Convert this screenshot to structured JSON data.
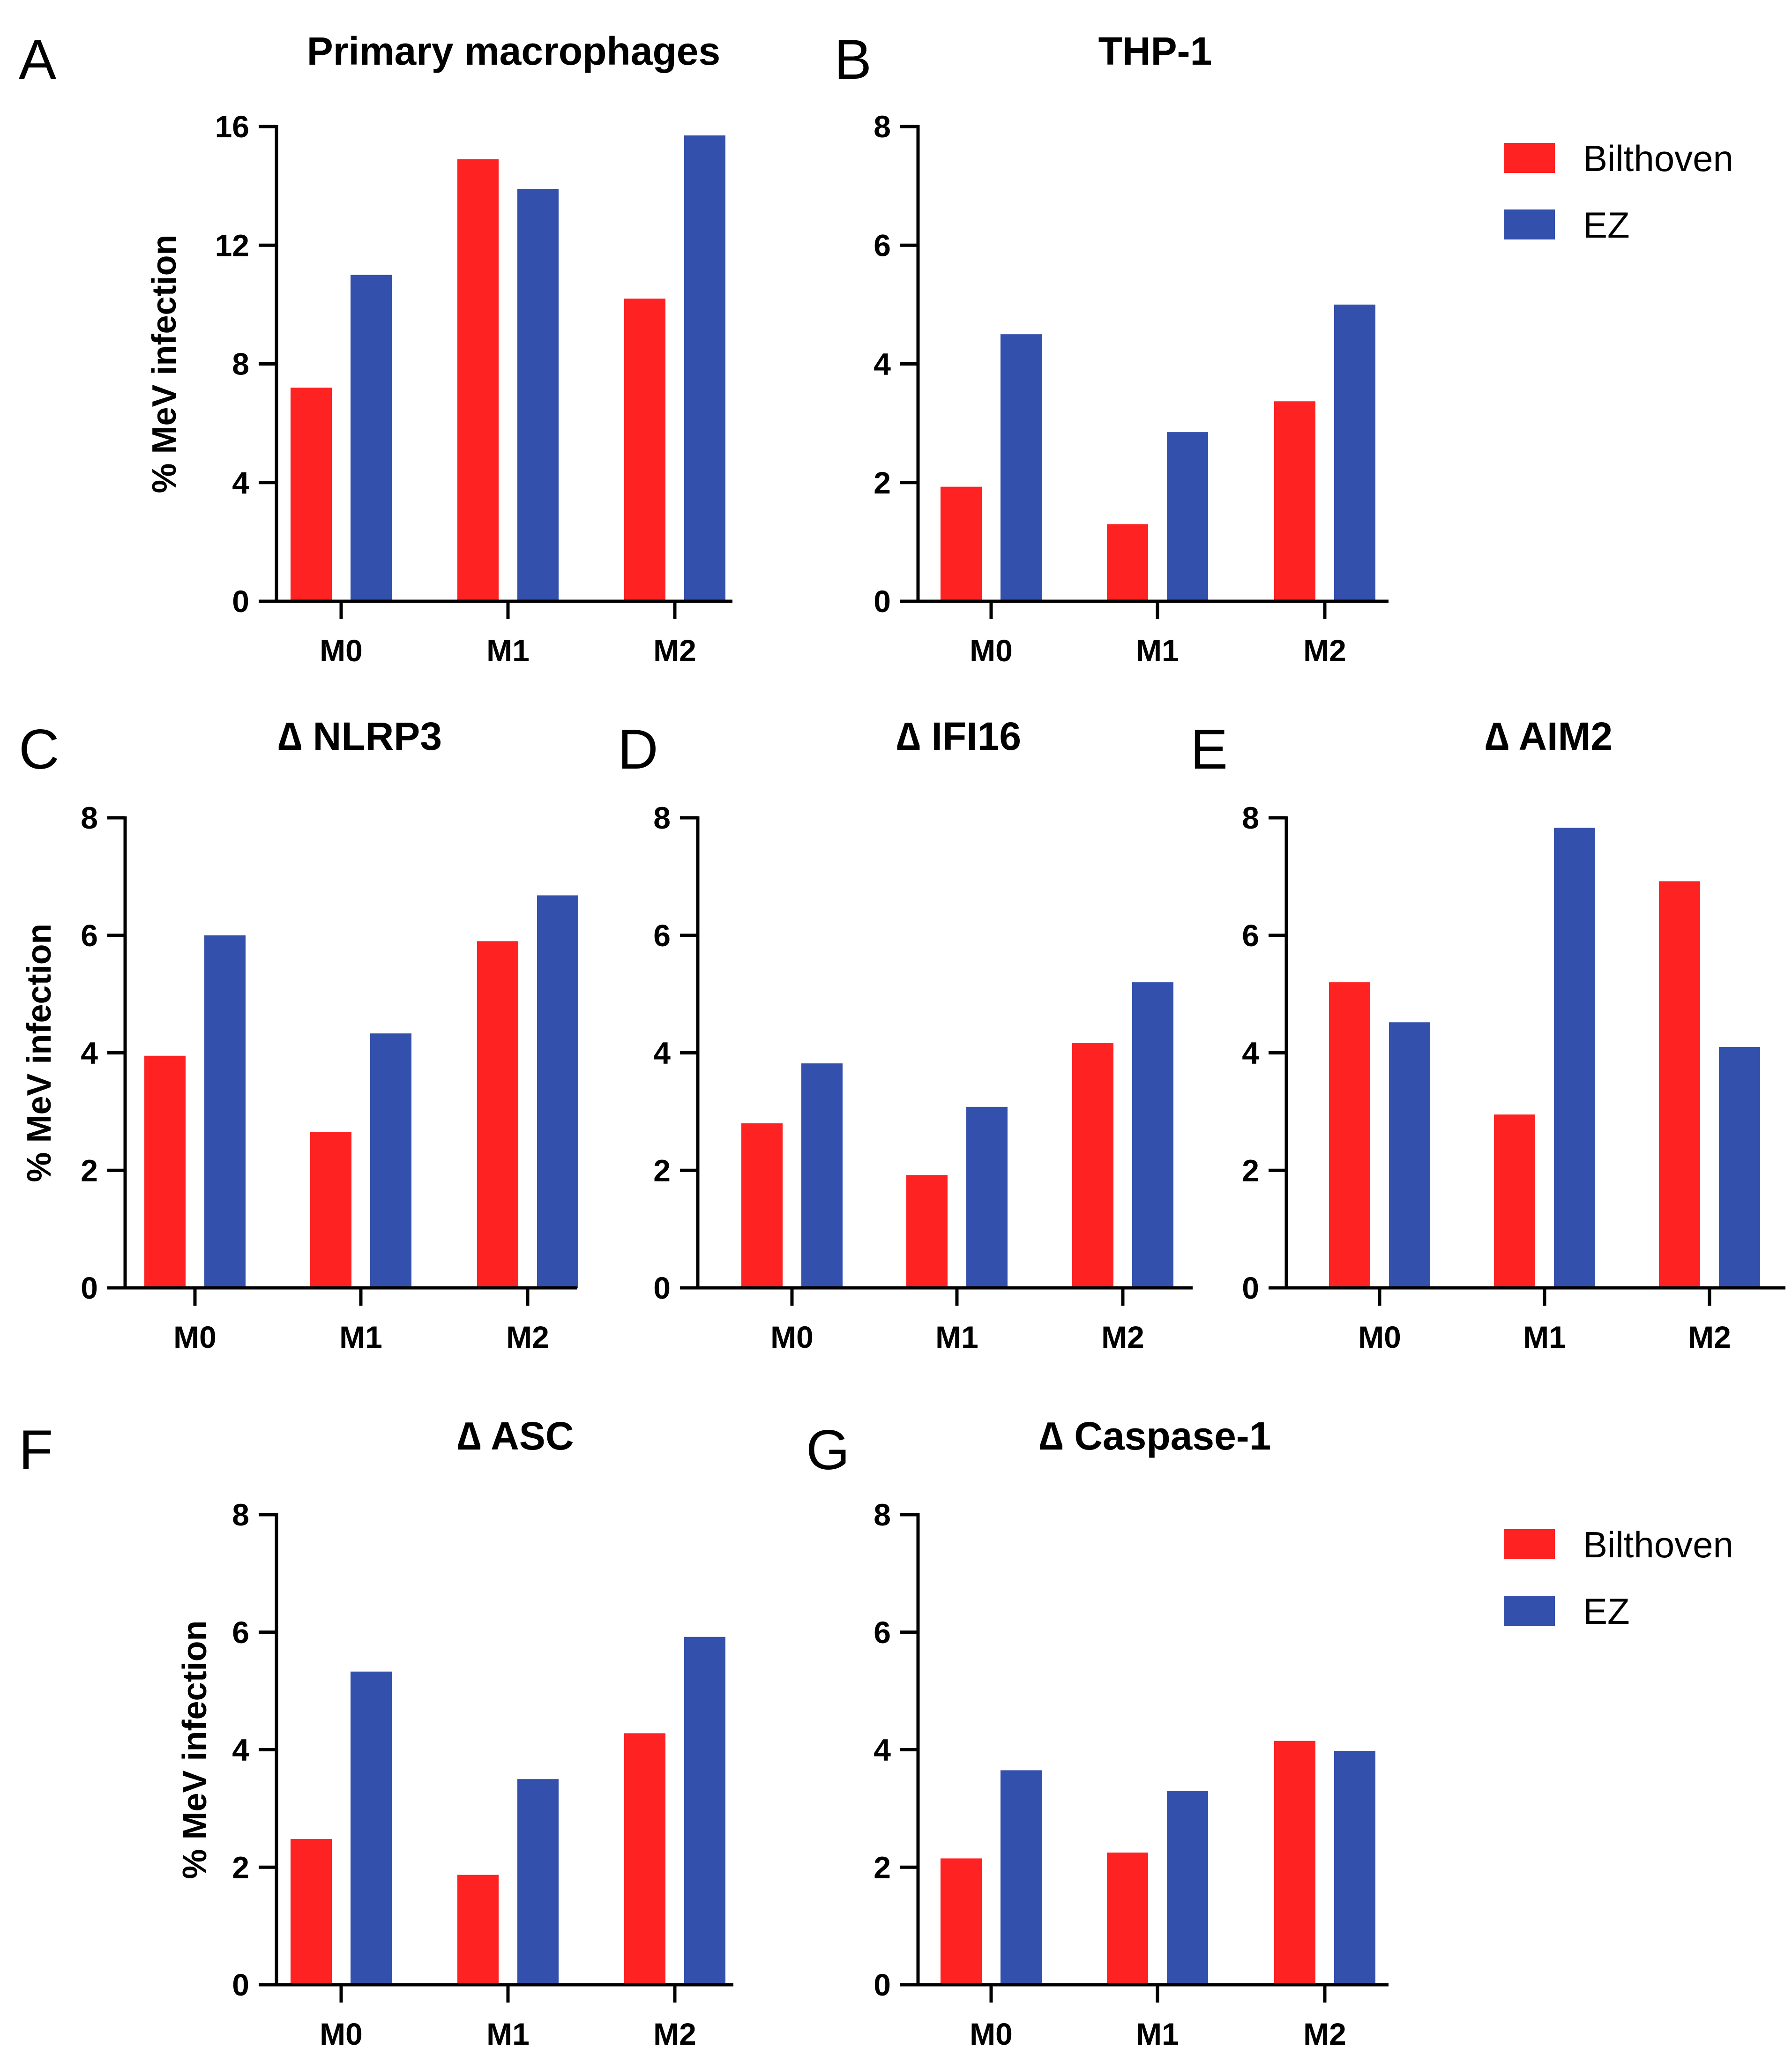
{
  "colors": {
    "bilthoven": "#fe2222",
    "ez": "#3450ad",
    "axis": "#000000"
  },
  "legend": {
    "bilthoven": "Bilthoven",
    "ez": "EZ"
  },
  "chart_data": [
    {
      "id": "A",
      "letter": "A",
      "type": "bar",
      "title": "Primary macrophages",
      "xlabel": "",
      "ylabel": "% MeV infection",
      "categories": [
        "M0",
        "M1",
        "M2"
      ],
      "ylim": [
        0,
        16
      ],
      "yticks": [
        0,
        4,
        8,
        12,
        16
      ],
      "series": [
        {
          "name": "Bilthoven",
          "values": [
            7.2,
            14.9,
            10.2
          ]
        },
        {
          "name": "EZ",
          "values": [
            11.0,
            13.9,
            15.7
          ]
        }
      ]
    },
    {
      "id": "B",
      "letter": "B",
      "type": "bar",
      "title": "THP-1",
      "xlabel": "",
      "ylabel": "",
      "categories": [
        "M0",
        "M1",
        "M2"
      ],
      "ylim": [
        0,
        8
      ],
      "yticks": [
        0,
        2,
        4,
        6,
        8
      ],
      "series": [
        {
          "name": "Bilthoven",
          "values": [
            1.93,
            1.3,
            3.37
          ]
        },
        {
          "name": "EZ",
          "values": [
            4.5,
            2.85,
            5.0
          ]
        }
      ]
    },
    {
      "id": "C",
      "letter": "C",
      "type": "bar",
      "title": "∆ NLRP3",
      "xlabel": "",
      "ylabel": "% MeV infection",
      "categories": [
        "M0",
        "M1",
        "M2"
      ],
      "ylim": [
        0,
        8
      ],
      "yticks": [
        0,
        2,
        4,
        6,
        8
      ],
      "series": [
        {
          "name": "Bilthoven",
          "values": [
            3.95,
            2.65,
            5.9
          ]
        },
        {
          "name": "EZ",
          "values": [
            6.0,
            4.33,
            6.68
          ]
        }
      ]
    },
    {
      "id": "D",
      "letter": "D",
      "type": "bar",
      "title": "∆ IFI16",
      "xlabel": "",
      "ylabel": "",
      "categories": [
        "M0",
        "M1",
        "M2"
      ],
      "ylim": [
        0,
        8
      ],
      "yticks": [
        0,
        2,
        4,
        6,
        8
      ],
      "series": [
        {
          "name": "Bilthoven",
          "values": [
            2.8,
            1.92,
            4.17
          ]
        },
        {
          "name": "EZ",
          "values": [
            3.82,
            3.08,
            5.2
          ]
        }
      ]
    },
    {
      "id": "E",
      "letter": "E",
      "type": "bar",
      "title": "∆ AIM2",
      "xlabel": "",
      "ylabel": "",
      "categories": [
        "M0",
        "M1",
        "M2"
      ],
      "ylim": [
        0,
        8
      ],
      "yticks": [
        0,
        2,
        4,
        6,
        8
      ],
      "series": [
        {
          "name": "Bilthoven",
          "values": [
            5.2,
            2.95,
            6.92
          ]
        },
        {
          "name": "EZ",
          "values": [
            4.52,
            7.83,
            4.1
          ]
        }
      ]
    },
    {
      "id": "F",
      "letter": "F",
      "type": "bar",
      "title": "∆ ASC",
      "xlabel": "",
      "ylabel": "% MeV infection",
      "categories": [
        "M0",
        "M1",
        "M2"
      ],
      "ylim": [
        0,
        8
      ],
      "yticks": [
        0,
        2,
        4,
        6,
        8
      ],
      "series": [
        {
          "name": "Bilthoven",
          "values": [
            2.48,
            1.87,
            4.28
          ]
        },
        {
          "name": "EZ",
          "values": [
            5.33,
            3.5,
            5.92
          ]
        }
      ]
    },
    {
      "id": "G",
      "letter": "G",
      "type": "bar",
      "title": "∆ Caspase-1",
      "xlabel": "",
      "ylabel": "",
      "categories": [
        "M0",
        "M1",
        "M2"
      ],
      "ylim": [
        0,
        8
      ],
      "yticks": [
        0,
        2,
        4,
        6,
        8
      ],
      "series": [
        {
          "name": "Bilthoven",
          "values": [
            2.15,
            2.25,
            4.15
          ]
        },
        {
          "name": "EZ",
          "values": [
            3.65,
            3.3,
            3.98
          ]
        }
      ]
    }
  ]
}
